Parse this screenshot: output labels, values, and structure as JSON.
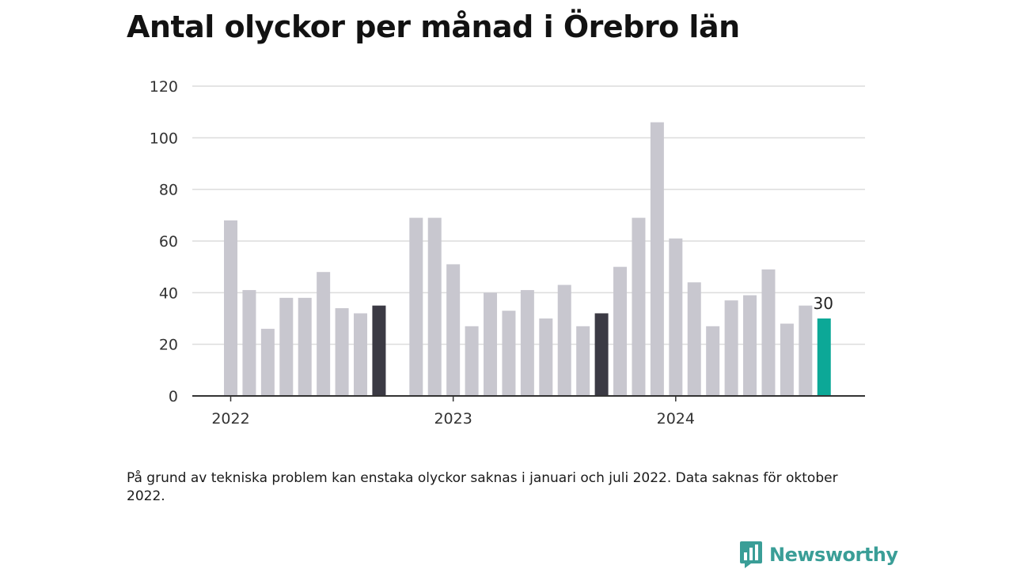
{
  "title": "Antal olyckor per månad i Örebro län",
  "footnote": "På grund av tekniska problem kan enstaka olyckor saknas i januari och juli 2022. Data saknas för oktober 2022.",
  "brand": {
    "name": "Newsworthy",
    "color": "#3a9e97",
    "icon": "bar-chart-speech-bubble-icon"
  },
  "colors": {
    "bar": "#c8c7cf",
    "highlight": "#3b3a44",
    "latest": "#0ca897",
    "grid": "#dcdcdc",
    "axis": "#333333"
  },
  "chart_data": {
    "type": "bar",
    "ylim": [
      0,
      120
    ],
    "y_ticks": [
      0,
      20,
      40,
      60,
      80,
      100,
      120
    ],
    "x_tick_labels": [
      {
        "label": "2022",
        "at": "2022-01"
      },
      {
        "label": "2023",
        "at": "2023-01"
      },
      {
        "label": "2024",
        "at": "2024-01"
      }
    ],
    "grid": true,
    "months": [
      "2022-01",
      "2022-02",
      "2022-03",
      "2022-04",
      "2022-05",
      "2022-06",
      "2022-07",
      "2022-08",
      "2022-09",
      "2022-10",
      "2022-11",
      "2022-12",
      "2023-01",
      "2023-02",
      "2023-03",
      "2023-04",
      "2023-05",
      "2023-06",
      "2023-07",
      "2023-08",
      "2023-09",
      "2023-10",
      "2023-11",
      "2023-12",
      "2024-01",
      "2024-02",
      "2024-03",
      "2024-04",
      "2024-05",
      "2024-06",
      "2024-07",
      "2024-08",
      "2024-09"
    ],
    "values": [
      68,
      41,
      26,
      38,
      38,
      48,
      34,
      32,
      35,
      null,
      69,
      69,
      51,
      27,
      40,
      33,
      41,
      30,
      43,
      27,
      32,
      50,
      69,
      106,
      61,
      44,
      27,
      37,
      39,
      49,
      28,
      35,
      30
    ],
    "highlighted": [
      "2022-09",
      "2023-09"
    ],
    "latest": "2024-09",
    "data_labels": [
      {
        "at": "2024-09",
        "text": "30"
      }
    ]
  }
}
